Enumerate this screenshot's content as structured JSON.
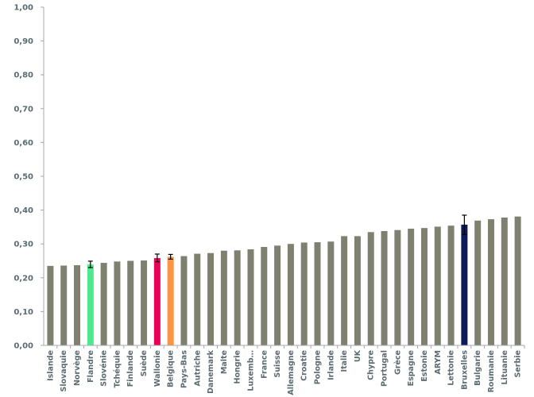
{
  "chart_data": {
    "type": "bar",
    "categories": [
      "Islande",
      "Slovaquie",
      "Norvège",
      "Flandre",
      "Slovénie",
      "Tchéquie",
      "Finlande",
      "Suède",
      "Wallonie",
      "Belgique",
      "Pays-Bas",
      "Autriche",
      "Danemark",
      "Malte",
      "Hongrie",
      "Luxemb…",
      "France",
      "Suisse",
      "Allemagne",
      "Croatie",
      "Pologne",
      "Irlande",
      "Italie",
      "UK",
      "Chypre",
      "Portugal",
      "Grèce",
      "Espagne",
      "Estonie",
      "ARYM",
      "Lettonie",
      "Bruxelles",
      "Bulgarie",
      "Roumanie",
      "Lituanie",
      "Serbie"
    ],
    "values": [
      0.235,
      0.236,
      0.237,
      0.239,
      0.244,
      0.248,
      0.25,
      0.251,
      0.258,
      0.262,
      0.264,
      0.271,
      0.273,
      0.28,
      0.281,
      0.284,
      0.291,
      0.295,
      0.3,
      0.304,
      0.305,
      0.307,
      0.323,
      0.323,
      0.335,
      0.338,
      0.341,
      0.345,
      0.347,
      0.351,
      0.354,
      0.357,
      0.369,
      0.373,
      0.378,
      0.381
    ],
    "error_bars": {
      "Flandre": [
        0.23,
        0.249
      ],
      "Wallonie": [
        0.247,
        0.27
      ],
      "Belgique": [
        0.255,
        0.269
      ],
      "Bruxelles": [
        0.328,
        0.385
      ]
    },
    "colors": {
      "default": "#7f8070",
      "Flandre": "#4ee88e",
      "Wallonie": "#e8005a",
      "Belgique": "#ff9440",
      "Bruxelles": "#0c1a5c"
    },
    "ylim": [
      0,
      1
    ],
    "yticks": [
      "0,00",
      "0,10",
      "0,20",
      "0,30",
      "0,40",
      "0,50",
      "0,60",
      "0,70",
      "0,80",
      "0,90",
      "1,00"
    ],
    "grid": false,
    "title": "",
    "xlabel": "",
    "ylabel": ""
  }
}
